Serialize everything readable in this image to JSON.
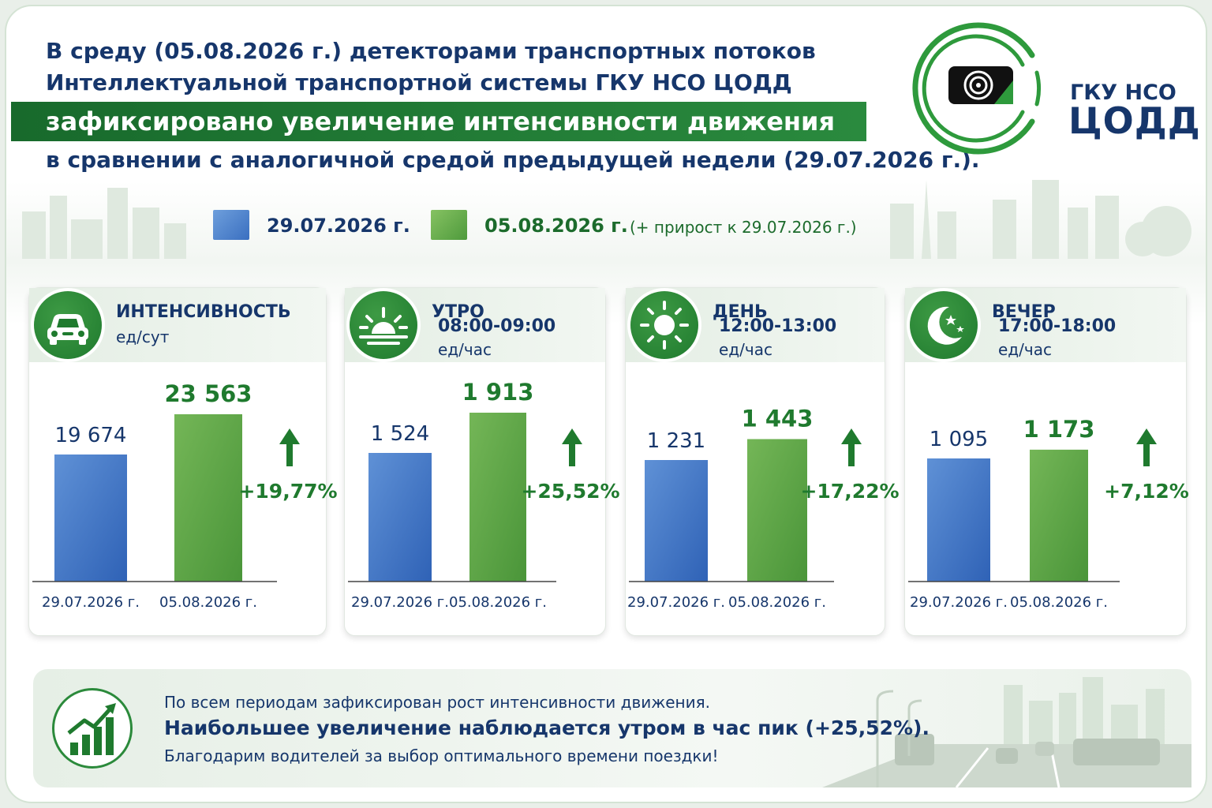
{
  "header": {
    "line1": "В среду (05.08.2026 г.) детекторами транспортных потоков",
    "line2": "Интеллектуальной транспортной системы ГКУ НСО ЦОДД",
    "highlight": "зафиксировано увеличение интенсивности движения",
    "line4": "в сравнении с аналогичной средой предыдущей недели (29.07.2026 г.)."
  },
  "logo": {
    "line1": "ГКУ НСО",
    "line2": "ЦОДД"
  },
  "legend": {
    "prev": "29.07.2026 г.",
    "curr": "05.08.2026 г.",
    "note": "(+ прирост к 29.07.2026 г.)"
  },
  "colors": {
    "prev": "#3d72c4",
    "curr": "#55a446",
    "accent": "#1f7a2e",
    "text": "#16366b"
  },
  "panels": [
    {
      "title": "ИНТЕНСИВНОСТЬ",
      "time": "",
      "unit": "ед/сут",
      "icon": "car-icon"
    },
    {
      "title": "УТРО",
      "time": "08:00-09:00",
      "unit": "ед/час",
      "icon": "sunrise-icon"
    },
    {
      "title": "ДЕНЬ",
      "time": "12:00-13:00",
      "unit": "ед/час",
      "icon": "sun-icon"
    },
    {
      "title": "ВЕЧЕР",
      "time": "17:00-18:00",
      "unit": "ед/час",
      "icon": "moon-icon"
    }
  ],
  "chart_data": [
    {
      "type": "bar",
      "categories": [
        "29.07.2026 г.",
        "05.08.2026 г."
      ],
      "values": [
        19674,
        23563
      ],
      "labels": [
        "19 674",
        "23 563"
      ],
      "growth": "+19,77%"
    },
    {
      "type": "bar",
      "categories": [
        "29.07.2026 г.",
        "05.08.2026 г."
      ],
      "values": [
        1524,
        1913
      ],
      "labels": [
        "1 524",
        "1 913"
      ],
      "growth": "+25,52%"
    },
    {
      "type": "bar",
      "categories": [
        "29.07.2026 г.",
        "05.08.2026 г."
      ],
      "values": [
        1231,
        1443
      ],
      "labels": [
        "1 231",
        "1 443"
      ],
      "growth": "+17,22%"
    },
    {
      "type": "bar",
      "categories": [
        "29.07.2026 г.",
        "05.08.2026 г."
      ],
      "values": [
        1095,
        1173
      ],
      "labels": [
        "1 095",
        "1 173"
      ],
      "growth": "+7,12%"
    }
  ],
  "footer": {
    "line1": "По всем периодам зафиксирован рост интенсивности движения.",
    "line2": "Наибольшее увеличение наблюдается утром в час пик (+25,52%).",
    "line3": "Благодарим водителей за выбор оптимального времени поездки!",
    "icon": "growth-chart-icon"
  }
}
